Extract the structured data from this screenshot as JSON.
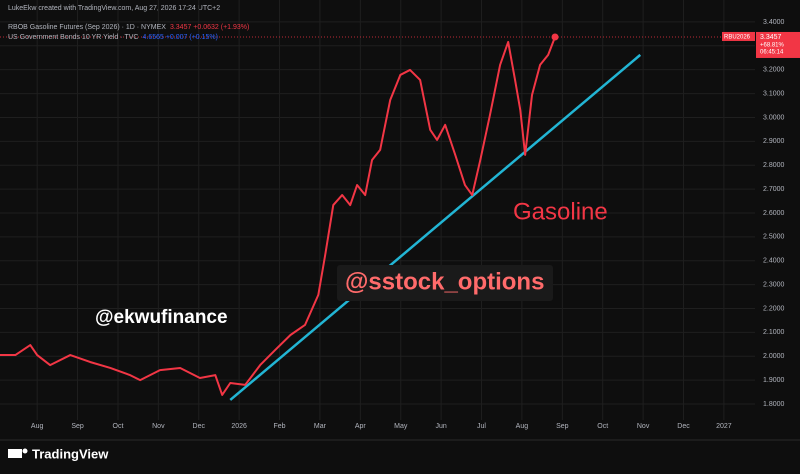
{
  "chart_data": {
    "type": "line",
    "credit": "LukeEkw created with TradingView.com, Aug 27, 2026 17:24 UTC+2",
    "xlim": [
      -0.92,
      17.77
    ],
    "xticks": [
      {
        "value": 0,
        "label": "Aug"
      },
      {
        "value": 1,
        "label": "Sep"
      },
      {
        "value": 2,
        "label": "Oct"
      },
      {
        "value": 3,
        "label": "Nov"
      },
      {
        "value": 4,
        "label": "Dec"
      },
      {
        "value": 5,
        "label": "2026"
      },
      {
        "value": 6,
        "label": "Feb"
      },
      {
        "value": 7,
        "label": "Mar"
      },
      {
        "value": 8,
        "label": "Apr"
      },
      {
        "value": 9,
        "label": "May"
      },
      {
        "value": 10,
        "label": "Jun"
      },
      {
        "value": 11,
        "label": "Jul"
      },
      {
        "value": 12,
        "label": "Aug"
      },
      {
        "value": 13,
        "label": "Sep"
      },
      {
        "value": 14,
        "label": "Oct"
      },
      {
        "value": 15,
        "label": "Nov"
      },
      {
        "value": 16,
        "label": "Dec"
      },
      {
        "value": 17,
        "label": "2027"
      }
    ],
    "ylim": [
      1.754,
      3.429
    ],
    "yticks": [
      {
        "value": 1.8,
        "label": "1.8000"
      },
      {
        "value": 1.9,
        "label": "1.9000"
      },
      {
        "value": 2.0,
        "label": "2.0000"
      },
      {
        "value": 2.1,
        "label": "2.1000"
      },
      {
        "value": 2.2,
        "label": "2.2000"
      },
      {
        "value": 2.3,
        "label": "2.3000"
      },
      {
        "value": 2.4,
        "label": "2.4000"
      },
      {
        "value": 2.5,
        "label": "2.5000"
      },
      {
        "value": 2.6,
        "label": "2.6000"
      },
      {
        "value": 2.7,
        "label": "2.7000"
      },
      {
        "value": 2.8,
        "label": "2.8000"
      },
      {
        "value": 2.9,
        "label": "2.9000"
      },
      {
        "value": 3.0,
        "label": "3.0000"
      },
      {
        "value": 3.1,
        "label": "3.1000"
      },
      {
        "value": 3.2,
        "label": "3.2000"
      },
      {
        "value": 3.3,
        "label": "3.3000"
      },
      {
        "value": 3.4,
        "label": "3.4000"
      }
    ],
    "grid": true,
    "x": [
      -0.92,
      -0.54,
      -0.17,
      0,
      0.32,
      0.82,
      1.31,
      1.81,
      2.3,
      2.55,
      3.04,
      3.54,
      4.03,
      4.41,
      4.58,
      4.78,
      5.15,
      5.52,
      5.89,
      6.27,
      6.63,
      6.96,
      7.13,
      7.33,
      7.55,
      7.75,
      7.92,
      8.12,
      8.29,
      8.49,
      8.74,
      8.99,
      9.23,
      9.48,
      9.73,
      9.9,
      10.1,
      10.35,
      10.59,
      10.77,
      10.97,
      11.21,
      11.46,
      11.66,
      11.83,
      11.96,
      12.08,
      12.25,
      12.45,
      12.65,
      12.82
    ],
    "series": [
      {
        "name": "RBOB Gasoline Futures (Sep 2026) · 1D · NYMEX",
        "color": "#f23645",
        "quote": "3.3457 +0.0632 (+1.93%)",
        "values": [
          2.005,
          2.005,
          2.047,
          2.005,
          1.963,
          2.005,
          1.976,
          1.951,
          1.921,
          1.9,
          1.942,
          1.951,
          1.909,
          1.921,
          1.838,
          1.888,
          1.88,
          1.963,
          2.026,
          2.089,
          2.131,
          2.257,
          2.424,
          2.633,
          2.675,
          2.633,
          2.717,
          2.675,
          2.822,
          2.864,
          3.073,
          3.178,
          3.199,
          3.157,
          2.948,
          2.906,
          2.969,
          2.843,
          2.717,
          2.675,
          2.822,
          3.011,
          3.22,
          3.316,
          3.157,
          3.031,
          2.843,
          3.094,
          3.22,
          3.262,
          3.337
        ]
      }
    ],
    "secondary_legend": {
      "name": "US Government Bonds 10 YR Yield · TVC",
      "quote": "4.6565 +0.007 (+0.15%)",
      "color": "#2962ff"
    },
    "trendline": {
      "color": "#22b5d4",
      "x": [
        4.78,
        14.93
      ],
      "values": [
        1.817,
        3.262
      ]
    },
    "price_label": {
      "symbol": "RBU2026",
      "value": "3.3457",
      "change": "+68.81%",
      "countdown": "06:45:14"
    },
    "annotations": [
      {
        "text": "@ekwufinance",
        "color": "#ffffff"
      },
      {
        "text": "@sstock_options",
        "color": "#ff6b6b"
      },
      {
        "text": "Gasoline",
        "color": "#f23645"
      }
    ],
    "brand": "TradingView"
  }
}
